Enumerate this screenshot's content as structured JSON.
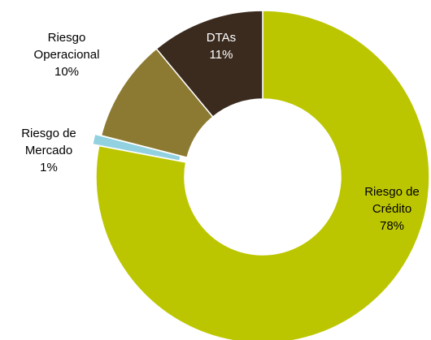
{
  "chart_data": {
    "type": "donut",
    "categories": [
      "Riesgo de Crédito",
      "Riesgo de Mercado",
      "Riesgo Operacional",
      "DTAs"
    ],
    "values": [
      78,
      1,
      10,
      11
    ],
    "value_labels": [
      "78%",
      "1%",
      "10%",
      "11%"
    ],
    "colors": [
      "#bcc600",
      "#92d1e0",
      "#8c7a32",
      "#3b2b1f"
    ]
  }
}
